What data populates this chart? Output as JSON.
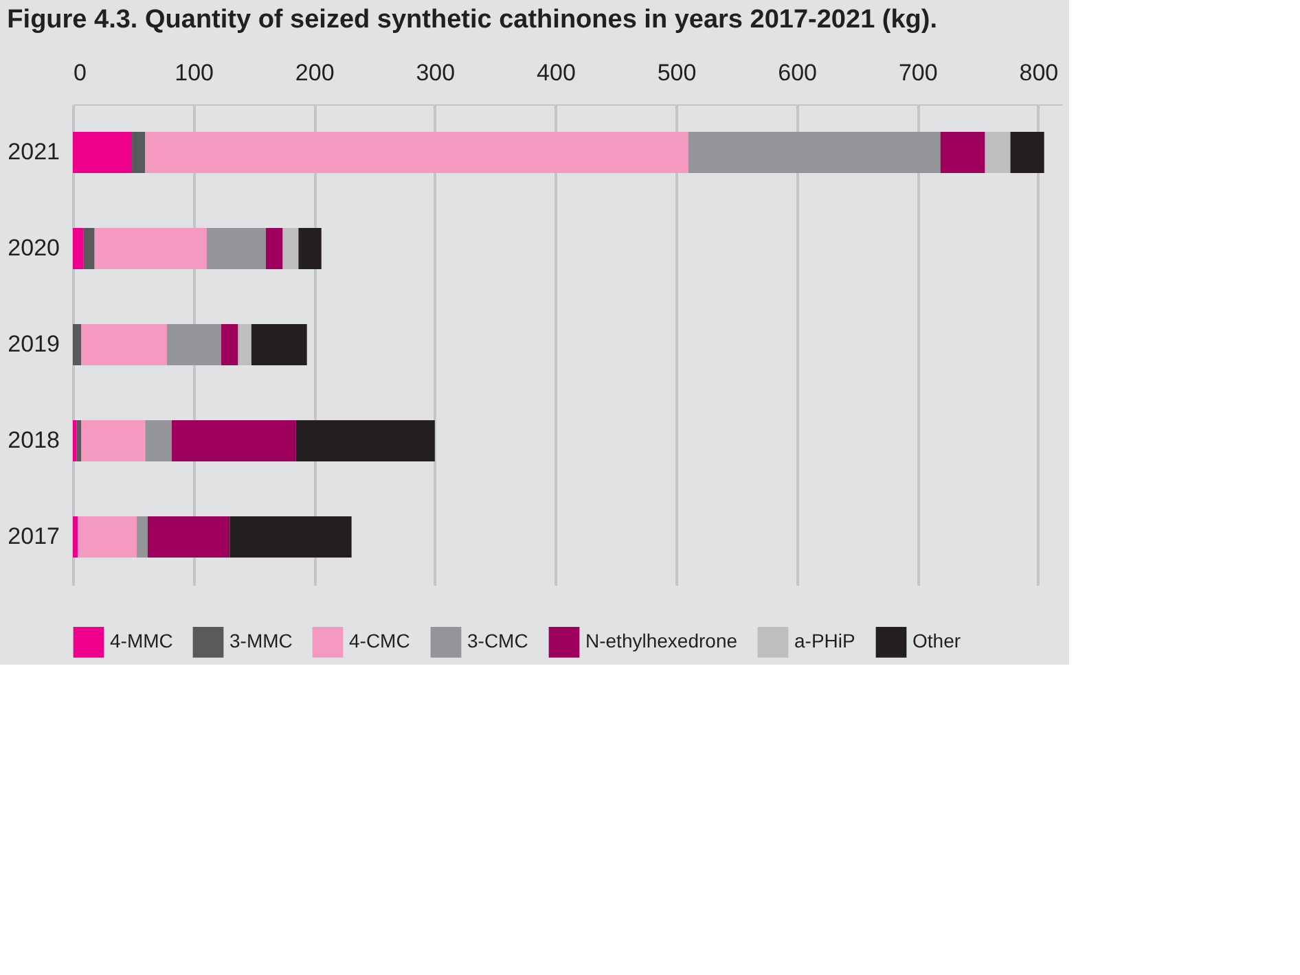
{
  "chart_data": {
    "type": "bar",
    "orientation": "horizontal",
    "stacked": true,
    "title": "Figure 4.3.    Quantity of seized synthetic cathinones in years 2017-2021 (kg).",
    "categories": [
      "2021",
      "2020",
      "2019",
      "2018",
      "2017"
    ],
    "series": [
      {
        "name": "4-MMC",
        "color": "#ec008c",
        "values": [
          49,
          9,
          0,
          3,
          4
        ]
      },
      {
        "name": "3-MMC",
        "color": "#58595b",
        "values": [
          11,
          9,
          7,
          4,
          0
        ]
      },
      {
        "name": "4-CMC",
        "color": "#f49ac1",
        "values": [
          450,
          93,
          71,
          53,
          49
        ]
      },
      {
        "name": "3-CMC",
        "color": "#939598",
        "values": [
          209,
          49,
          45,
          22,
          9
        ]
      },
      {
        "name": "N-ethylhexedrone",
        "color": "#9e005d",
        "values": [
          37,
          14,
          14,
          103,
          68
        ]
      },
      {
        "name": "a-PHiP",
        "color": "#bcbec0",
        "values": [
          21,
          13,
          11,
          0,
          0
        ]
      },
      {
        "name": "Other",
        "color": "#231f20",
        "values": [
          28,
          19,
          46,
          115,
          101
        ]
      }
    ],
    "xlim": [
      0,
      820
    ],
    "xticks": [
      0,
      100,
      200,
      300,
      400,
      500,
      600,
      700,
      800
    ],
    "grid": "x",
    "legend": "bottom"
  }
}
